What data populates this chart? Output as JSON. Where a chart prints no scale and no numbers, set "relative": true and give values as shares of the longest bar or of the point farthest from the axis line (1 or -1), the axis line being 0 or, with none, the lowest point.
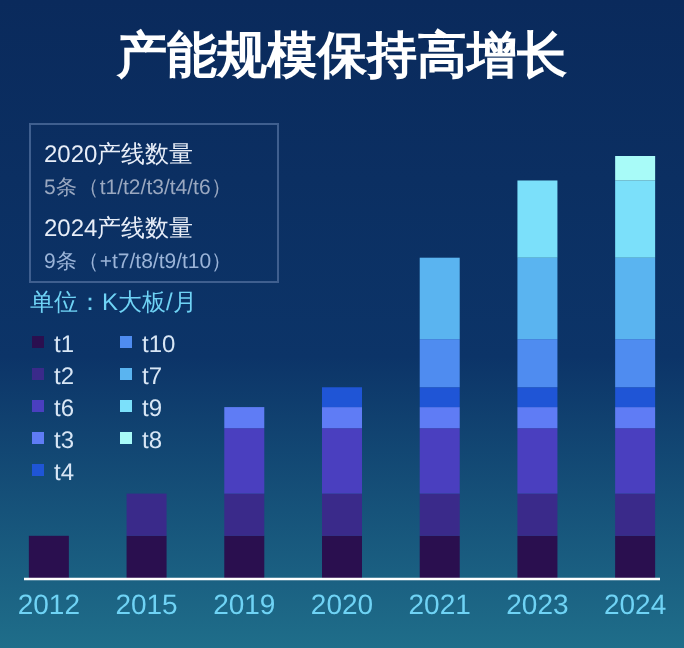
{
  "chart_data": {
    "type": "bar",
    "title": "产能规模保持高增长",
    "categories": [
      "2012",
      "2015",
      "2019",
      "2020",
      "2021",
      "2023",
      "2024"
    ],
    "stacked": true,
    "relative": true,
    "legend": "left",
    "annotations": [
      "2020产线数量",
      "5条（t1/t2/t3/t4/t6）",
      "2024产线数量",
      "9条（+t7/t8/t9/t10）",
      "单位：K大板/月"
    ],
    "series": [
      {
        "name": "t1",
        "color": "#2a0f4f",
        "values": [
          0.1,
          0.1,
          0.1,
          0.1,
          0.1,
          0.1,
          0.1
        ]
      },
      {
        "name": "t2",
        "color": "#3a2a8a",
        "values": [
          null,
          0.1,
          0.1,
          0.1,
          0.1,
          0.1,
          0.1
        ]
      },
      {
        "name": "t6",
        "color": "#4a3fbf",
        "values": [
          null,
          null,
          0.155,
          0.155,
          0.155,
          0.155,
          0.155
        ]
      },
      {
        "name": "t3",
        "color": "#5f7cf5",
        "values": [
          null,
          null,
          0.05,
          0.05,
          0.05,
          0.05,
          0.05
        ]
      },
      {
        "name": "t4",
        "color": "#1f55d6",
        "values": [
          null,
          null,
          null,
          0.047,
          0.047,
          0.047,
          0.047
        ]
      },
      {
        "name": "t10",
        "color": "#4f8cf0",
        "values": [
          null,
          null,
          null,
          null,
          0.114,
          0.114,
          0.114
        ]
      },
      {
        "name": "t7",
        "color": "#5ab4f0",
        "values": [
          null,
          null,
          null,
          null,
          0.193,
          0.193,
          0.193
        ]
      },
      {
        "name": "t9",
        "color": "#7be0fa",
        "values": [
          null,
          null,
          null,
          null,
          null,
          0.183,
          0.183
        ]
      },
      {
        "name": "t8",
        "color": "#a8fbf8",
        "values": [
          null,
          null,
          null,
          null,
          null,
          null,
          0.058
        ]
      }
    ]
  }
}
